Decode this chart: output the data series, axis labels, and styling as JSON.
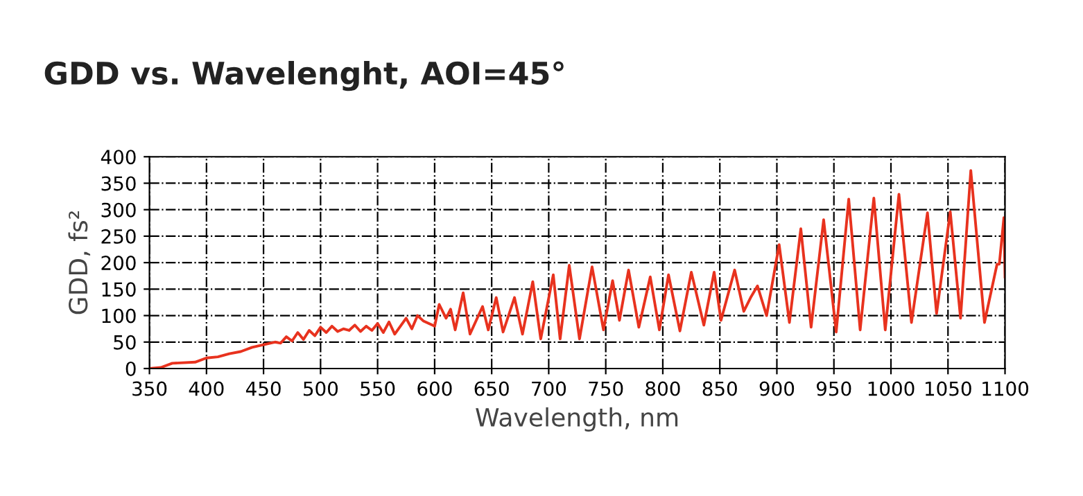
{
  "chart_data": {
    "type": "line",
    "title": "GDD vs. Wavelenght, AOI=45°",
    "xlabel": "Wavelength, nm",
    "ylabel": "GDD, fs²",
    "series": [
      {
        "color": "#e8321e",
        "x": [
          350,
          360,
          370,
          390,
          400,
          410,
          420,
          430,
          440,
          450,
          460,
          465,
          470,
          475,
          480,
          485,
          490,
          495,
          500,
          505,
          510,
          515,
          520,
          525,
          530,
          535,
          540,
          545,
          550,
          555,
          560,
          565,
          570,
          575,
          580,
          585,
          590,
          595,
          600,
          604,
          610,
          614,
          618,
          625,
          631,
          642,
          647,
          654,
          660,
          670,
          677,
          686,
          693,
          704,
          710,
          718,
          727,
          738,
          748,
          756,
          762,
          770,
          779,
          789,
          797,
          805,
          815,
          825,
          836,
          845,
          851,
          863,
          871,
          877,
          883,
          891,
          902,
          911,
          921,
          930,
          941,
          952,
          963,
          973,
          985,
          995,
          1007,
          1018,
          1032,
          1040,
          1052,
          1061,
          1070,
          1082,
          1093,
          1095,
          1099,
          1100
        ],
        "values": [
          0,
          2,
          10,
          12,
          20,
          22,
          28,
          32,
          40,
          45,
          50,
          48,
          60,
          52,
          68,
          55,
          72,
          62,
          78,
          68,
          80,
          70,
          75,
          72,
          82,
          70,
          80,
          72,
          85,
          68,
          88,
          65,
          80,
          95,
          75,
          100,
          90,
          85,
          80,
          121,
          95,
          112,
          73,
          143,
          65,
          117,
          73,
          134,
          69,
          134,
          65,
          164,
          56,
          177,
          56,
          195,
          56,
          192,
          73,
          166,
          91,
          186,
          78,
          173,
          73,
          177,
          71,
          182,
          82,
          182,
          91,
          186,
          108,
          134,
          156,
          100,
          234,
          87,
          264,
          78,
          281,
          69,
          320,
          73,
          322,
          73,
          329,
          87,
          294,
          104,
          296,
          95,
          374,
          87,
          197,
          197,
          285,
          173
        ]
      }
    ],
    "xlim": [
      350,
      1100
    ],
    "ylim": [
      0,
      400
    ],
    "xticks": [
      350,
      400,
      450,
      500,
      550,
      600,
      650,
      700,
      750,
      800,
      850,
      900,
      950,
      1000,
      1050,
      1100
    ],
    "yticks": [
      0,
      50,
      100,
      150,
      200,
      250,
      300,
      350,
      400
    ],
    "grid": true,
    "line_style": "solid",
    "marker": "none",
    "legend": false
  }
}
